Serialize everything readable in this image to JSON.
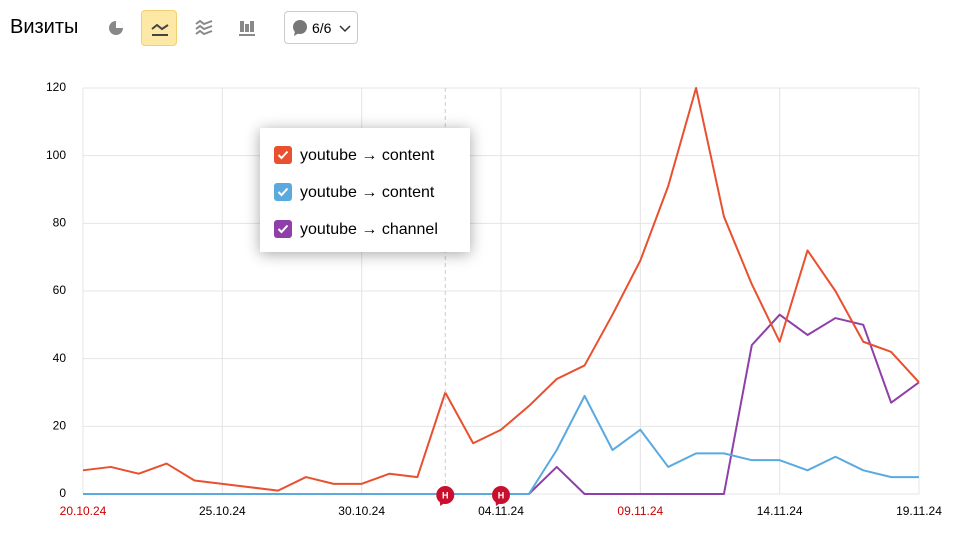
{
  "toolbar": {
    "title": "Визиты",
    "selector": "6/6"
  },
  "chart_data": {
    "type": "line",
    "categories": [
      "20.10.24",
      null,
      null,
      null,
      null,
      "25.10.24",
      null,
      null,
      null,
      null,
      "30.10.24",
      null,
      null,
      null,
      null,
      "04.11.24",
      null,
      null,
      null,
      null,
      "09.11.24",
      null,
      null,
      null,
      null,
      "14.11.24",
      null,
      null,
      null,
      null,
      "19.11.24"
    ],
    "highlighted_categories": [
      0,
      20
    ],
    "highlight_color": "#cc0000",
    "series": [
      {
        "name": "youtube → content",
        "color": "#e8502f",
        "values": [
          7,
          8,
          6,
          9,
          4,
          3,
          2,
          1,
          5,
          3,
          3,
          6,
          5,
          30,
          15,
          19,
          26,
          34,
          38,
          53,
          69,
          91,
          120,
          82,
          62,
          45,
          72,
          60,
          45,
          42,
          33
        ]
      },
      {
        "name": "youtube → content",
        "color": "#5aaae0",
        "values": [
          0,
          0,
          0,
          0,
          0,
          0,
          0,
          0,
          0,
          0,
          0,
          0,
          0,
          0,
          0,
          0,
          0,
          13,
          29,
          13,
          19,
          8,
          12,
          12,
          10,
          10,
          7,
          11,
          7,
          5,
          5
        ]
      },
      {
        "name": "youtube → channel",
        "color": "#8e3fa8",
        "values": [
          0,
          0,
          0,
          0,
          0,
          0,
          0,
          0,
          0,
          0,
          0,
          0,
          0,
          0,
          0,
          0,
          0,
          8,
          0,
          0,
          0,
          0,
          0,
          0,
          44,
          53,
          47,
          52,
          50,
          27,
          33
        ]
      }
    ],
    "ylim": [
      0,
      120
    ],
    "yticks": [
      0,
      20,
      40,
      60,
      80,
      100,
      120
    ],
    "grid": true,
    "annotations": [
      {
        "category_index": 13,
        "label": "Н"
      },
      {
        "category_index": 15,
        "label": "Н"
      }
    ]
  }
}
